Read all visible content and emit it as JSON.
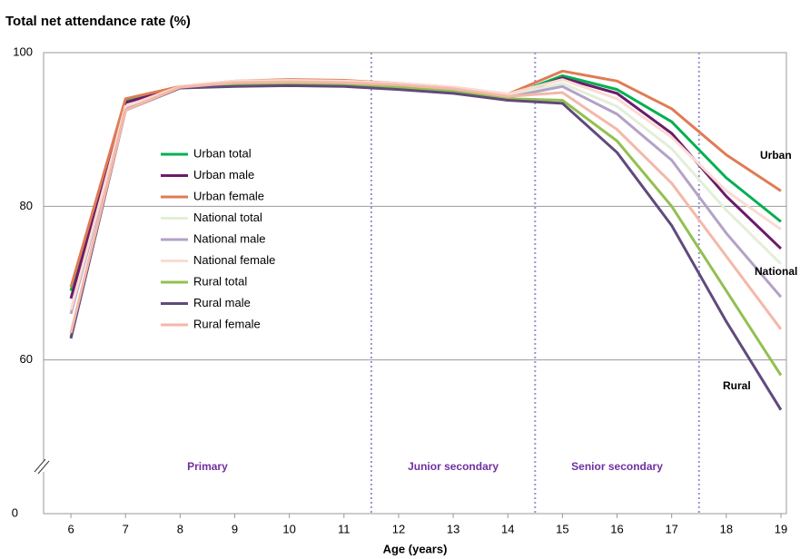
{
  "chart_data": {
    "type": "line",
    "title": "Total net attendance rate (%)",
    "x_label": "Age (years)",
    "x": [
      6,
      7,
      8,
      9,
      10,
      11,
      12,
      13,
      14,
      15,
      16,
      17,
      18,
      19
    ],
    "xlim": [
      5.5,
      19.1
    ],
    "xticks": [
      6,
      7,
      8,
      9,
      10,
      11,
      12,
      13,
      14,
      15,
      16,
      17,
      18,
      19
    ],
    "ylim": [
      40,
      100
    ],
    "yticks": [
      60,
      80,
      100
    ],
    "y_break_label": "0",
    "grid": true,
    "dividers": [
      11.5,
      14.5,
      17.5
    ],
    "stages": [
      "Primary",
      "Junior secondary",
      "Senior secondary"
    ],
    "annotations": [
      "Urban",
      "National",
      "Rural"
    ],
    "series": [
      {
        "name": "Urban total",
        "color": "#00b050",
        "values": [
          69,
          93.8,
          95.5,
          96,
          96.1,
          96,
          95.6,
          95.1,
          94.3,
          97,
          95.2,
          91,
          83.7,
          78
        ]
      },
      {
        "name": "Urban male",
        "color": "#6a1b6a",
        "values": [
          68,
          93.5,
          95.5,
          95.8,
          95.9,
          95.8,
          95.4,
          94.8,
          94.2,
          96.7,
          94.7,
          89.5,
          81.3,
          74.5
        ]
      },
      {
        "name": "Urban female",
        "color": "#e07b54",
        "values": [
          69.5,
          94,
          95.6,
          96.3,
          96.5,
          96.4,
          96,
          95.5,
          94.6,
          97.6,
          96.3,
          92.7,
          86.7,
          82
        ]
      },
      {
        "name": "National total",
        "color": "#e2efd9",
        "values": [
          66,
          93,
          95.5,
          96.1,
          96.3,
          96.2,
          95.8,
          95.3,
          94.4,
          96,
          93,
          87.5,
          79.5,
          72.5
        ]
      },
      {
        "name": "National male",
        "color": "#b3a2c7",
        "values": [
          66,
          92.8,
          95.5,
          95.8,
          96,
          95.9,
          95.5,
          95,
          94.2,
          95.6,
          92,
          86,
          76.5,
          68.2
        ]
      },
      {
        "name": "National female",
        "color": "#fadbd2",
        "values": [
          66.5,
          93,
          95.6,
          96.3,
          96.4,
          96.3,
          96,
          95.5,
          94.6,
          96.5,
          94,
          89,
          82,
          77
        ]
      },
      {
        "name": "Rural total",
        "color": "#92c050",
        "values": [
          63,
          92.5,
          95.5,
          95.9,
          96,
          95.9,
          95.5,
          94.9,
          94,
          93.8,
          88.5,
          80,
          69,
          58
        ]
      },
      {
        "name": "Rural male",
        "color": "#604a7b",
        "values": [
          62.8,
          92.5,
          95.4,
          95.6,
          95.7,
          95.6,
          95.2,
          94.7,
          93.8,
          93.4,
          87,
          77.5,
          65,
          53.5
        ]
      },
      {
        "name": "Rural female",
        "color": "#f4b8a8",
        "values": [
          63.5,
          92.5,
          95.5,
          96.1,
          96.2,
          96.1,
          95.8,
          95.3,
          94.3,
          94.8,
          90,
          83,
          73.5,
          64
        ]
      }
    ]
  }
}
